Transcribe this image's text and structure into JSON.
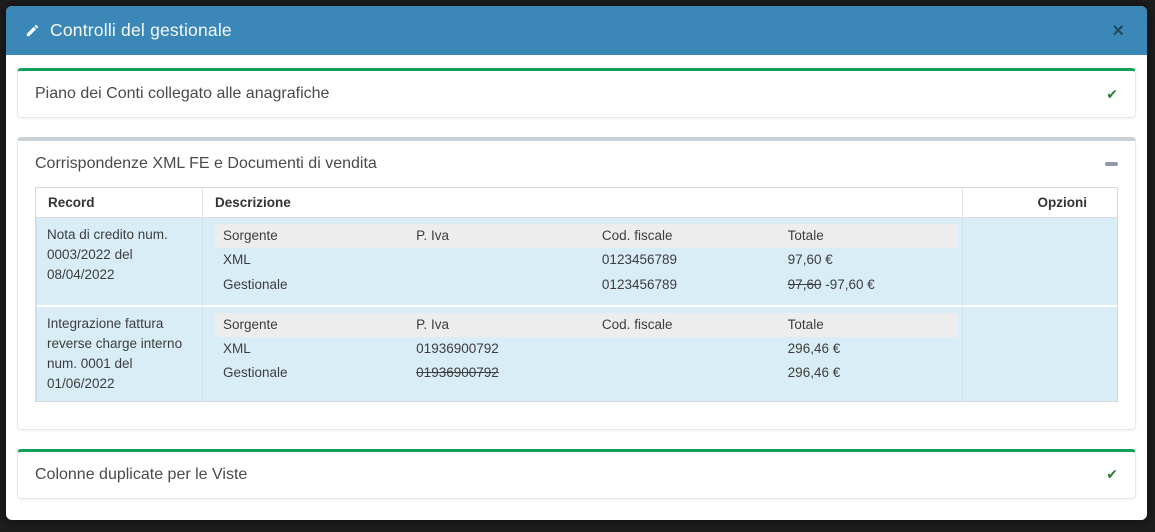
{
  "modal": {
    "title": "Controlli del gestionale"
  },
  "icons": {
    "close": "×",
    "check": "✔",
    "edit": "✎",
    "collapse": "–"
  },
  "colors": {
    "header_bg": "#3a87b8",
    "accent_green": "#14a05a",
    "check_green": "#2e7d32",
    "collapsed_gray": "#c9d0d6",
    "row_blue": "#d9edf7"
  },
  "sections": {
    "piano_conti": {
      "title": "Piano dei Conti collegato alle anagrafiche",
      "status": "ok"
    },
    "corrispondenze": {
      "title": "Corrispondenze XML FE e Documenti di vendita",
      "status": "expanded"
    },
    "colonne_viste": {
      "title": "Colonne duplicate per le Viste",
      "status": "ok"
    }
  },
  "table": {
    "columns": [
      "Record",
      "Descrizione",
      "Opzioni"
    ],
    "inner_columns": [
      "Sorgente",
      "P. Iva",
      "Cod. fiscale",
      "Totale"
    ],
    "rows": [
      {
        "record": "Nota di credito num. 0003/2022 del 08/04/2022",
        "entries": [
          {
            "cells": [
              [
                {
                  "t": "XML"
                }
              ],
              [],
              [
                {
                  "t": "0123456789"
                }
              ],
              [
                {
                  "t": "97,60 €"
                }
              ]
            ]
          },
          {
            "cells": [
              [
                {
                  "t": "Gestionale"
                }
              ],
              [],
              [
                {
                  "t": "0123456789"
                }
              ],
              [
                {
                  "t": "97,60",
                  "s": true
                },
                {
                  "t": " -97,60 €"
                }
              ]
            ]
          }
        ]
      },
      {
        "record": "Integrazione fattura reverse charge interno num. 0001 del 01/06/2022",
        "entries": [
          {
            "cells": [
              [
                {
                  "t": "XML"
                }
              ],
              [
                {
                  "t": "01936900792"
                }
              ],
              [],
              [
                {
                  "t": "296,46 €"
                }
              ]
            ]
          },
          {
            "cells": [
              [
                {
                  "t": "Gestionale"
                }
              ],
              [
                {
                  "t": "01936900792",
                  "s": true
                }
              ],
              [],
              [
                {
                  "t": "296,46 €"
                }
              ]
            ]
          }
        ]
      }
    ]
  }
}
